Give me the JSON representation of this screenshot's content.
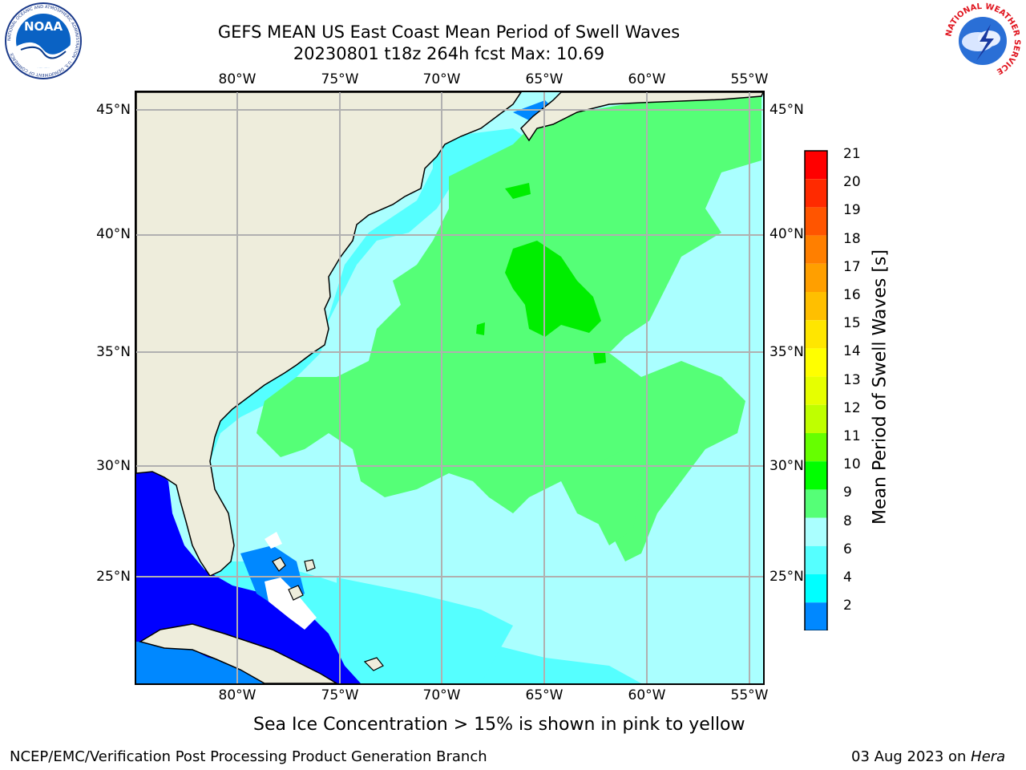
{
  "header": {
    "title_line1": "GEFS MEAN US East Coast Mean Period of Swell Waves",
    "title_line2": "20230801 t18z 264h fcst   Max: 10.69"
  },
  "logos": {
    "noaa_text": "NOAA",
    "noaa_ring_text": "NATIONAL OCEANIC AND ATMOSPHERIC ADMINISTRATION · U.S. DEPARTMENT OF COMMERCE",
    "nws_ring_text": "NATIONAL WEATHER SERVICE"
  },
  "map": {
    "lon_labels": [
      "80°W",
      "75°W",
      "70°W",
      "65°W",
      "60°W",
      "55°W"
    ],
    "lat_labels": [
      "45°N",
      "40°N",
      "35°N",
      "30°N",
      "25°N"
    ],
    "land_color": "#eeeddc",
    "grid_color": "#b0b0b0"
  },
  "colorbar": {
    "label": "Mean Period of Swell Waves [s]",
    "ticks": [
      "21",
      "20",
      "19",
      "18",
      "17",
      "16",
      "15",
      "14",
      "13",
      "12",
      "11",
      "10",
      "9",
      "8",
      "6",
      "4",
      "2"
    ],
    "colors_top_to_bottom": [
      "#ff0000",
      "#ff2a00",
      "#ff5500",
      "#ff7f00",
      "#ff9f00",
      "#ffbf00",
      "#ffe600",
      "#ffff00",
      "#e6ff00",
      "#bfff00",
      "#66ff00",
      "#00ff00",
      "#55ff77",
      "#aaffff",
      "#55ffff",
      "#00ffff",
      "#0088ff"
    ],
    "under_color": "#0000ff"
  },
  "footer": {
    "note": "Sea Ice Concentration > 15% is shown in pink to yellow",
    "left": "NCEP/EMC/Verification Post Processing Product Generation Branch",
    "right_date": "03 Aug 2023 on ",
    "right_machine": "Hera"
  }
}
